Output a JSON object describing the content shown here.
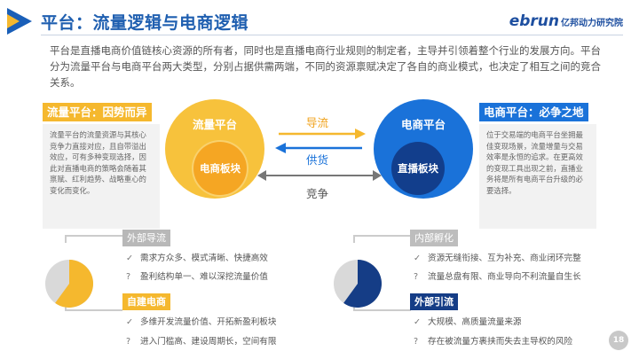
{
  "header": {
    "title": "平台：流量逻辑与电商逻辑",
    "logo_main": "ebrun",
    "logo_sub": "亿邦动力研究院"
  },
  "intro": "平台是直播电商价值链核心资源的所有者，同时也是直播电商行业规则的制定者，主导并引领着整个行业的发展方向。平台分为流量平台与电商平台两大类型，分别占据供需两端，不同的资源禀赋决定了各自的商业模式，也决定了相互之间的竞合关系。",
  "left_panel": {
    "tag": "流量平台：因势而异",
    "text": "流量平台的流量资源与其核心竞争力直接对应，且自带溢出效应，可有多种变现选择，因此对直播电商的策略会随着其禀赋、红利趋势、战略重心的变化而变化。"
  },
  "right_panel": {
    "tag": "电商平台：必争之地",
    "text": "位于交易端的电商平台坐拥最佳变现场景，流量增量与交易效率是永恒的追求。在更高效的变现工具出现之前，直播业务将是所有电商平台升级的必要选择。"
  },
  "diagram": {
    "left_circle_title": "流量平台",
    "left_inner": "电商板块",
    "right_circle_title": "电商平台",
    "right_inner": "直播板块",
    "arrow_top": "导流",
    "arrow_mid": "供货",
    "arrow_bottom": "竞争"
  },
  "bottom_left": {
    "tag1": "外部导流",
    "items1": [
      {
        "mark": "✓",
        "text": "需求方众多、模式清晰、快捷高效"
      },
      {
        "mark": "?",
        "text": "盈利结构单一、难以深挖流量价值"
      }
    ],
    "tag2": "自建电商",
    "items2": [
      {
        "mark": "✓",
        "text": "多维开发流量价值、开拓新盈利板块"
      },
      {
        "mark": "?",
        "text": "进入门槛高、建设周期长，空间有限"
      }
    ],
    "pie_fraction": 0.6
  },
  "bottom_right": {
    "tag1": "内部孵化",
    "items1": [
      {
        "mark": "✓",
        "text": "资源无缝衔接、互为补充、商业闭环完整"
      },
      {
        "mark": "?",
        "text": "流量总盘有限、商业导向不利流量自生长"
      }
    ],
    "tag2": "外部引流",
    "items2": [
      {
        "mark": "✓",
        "text": "大规模、高质量流量来源"
      },
      {
        "mark": "?",
        "text": "存在被流量方裹挟而失去主导权的风险"
      }
    ],
    "pie_fraction": 0.6
  },
  "page_number": "18",
  "colors": {
    "yellow": "#f5b82e",
    "blue": "#1a72d9",
    "navy": "#153d86",
    "title_blue": "#1f5fb0"
  }
}
